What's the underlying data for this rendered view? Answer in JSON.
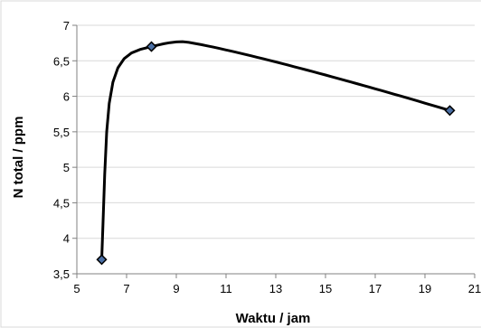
{
  "chart_data": {
    "type": "scatter",
    "title": "",
    "xlabel": "Waktu / jam",
    "ylabel": "N total / ppm",
    "xlim": [
      5,
      21
    ],
    "ylim": [
      3.5,
      7
    ],
    "x_ticks": [
      5,
      7,
      9,
      11,
      13,
      15,
      17,
      19,
      21
    ],
    "y_ticks": [
      3.5,
      4,
      4.5,
      5,
      5.5,
      6,
      6.5,
      7
    ],
    "x_tick_labels": [
      "5",
      "7",
      "9",
      "11",
      "13",
      "15",
      "17",
      "19",
      "21"
    ],
    "y_tick_labels": [
      "3,5",
      "4",
      "4,5",
      "5",
      "5,5",
      "6",
      "6,5",
      "7"
    ],
    "grid": "horizontal",
    "legend": "none",
    "smooth_line": true,
    "series": [
      {
        "x": [
          6,
          8,
          20
        ],
        "y": [
          3.7,
          6.7,
          5.8
        ]
      }
    ],
    "colors": {
      "line": "#000000",
      "marker_fill": "#4a6fa5",
      "marker_edge": "#000000",
      "grid": "#d9d9d9",
      "axis": "#808080"
    }
  }
}
